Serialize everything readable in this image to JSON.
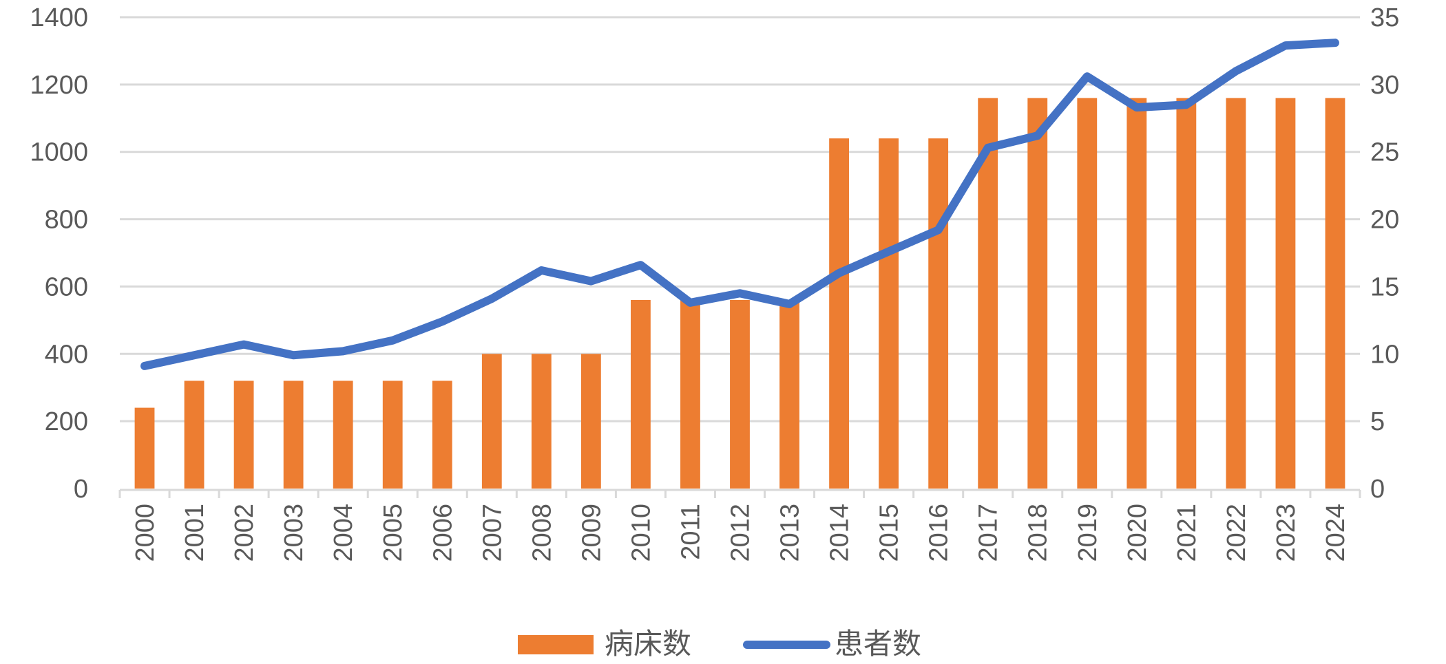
{
  "chart_data": {
    "type": "bar+line",
    "title": "",
    "categories": [
      "2000",
      "2001",
      "2002",
      "2003",
      "2004",
      "2005",
      "2006",
      "2007",
      "2008",
      "2009",
      "2010",
      "2011",
      "2012",
      "2013",
      "2014",
      "2015",
      "2016",
      "2017",
      "2018",
      "2019",
      "2020",
      "2021",
      "2022",
      "2023",
      "2024"
    ],
    "series": [
      {
        "name": "病床数",
        "type": "bar",
        "axis": "left",
        "color": "#ED7D31",
        "values": [
          240,
          320,
          320,
          320,
          320,
          320,
          320,
          400,
          400,
          400,
          560,
          560,
          560,
          560,
          1040,
          1040,
          1040,
          1160,
          1160,
          1160,
          1160,
          1160,
          1160,
          1160,
          1160
        ]
      },
      {
        "name": "患者数",
        "type": "line",
        "axis": "right",
        "color": "#4472C4",
        "values": [
          9.1,
          9.9,
          10.7,
          9.9,
          10.2,
          11.0,
          12.4,
          14.1,
          16.2,
          15.4,
          16.6,
          13.8,
          14.5,
          13.7,
          16.0,
          17.6,
          19.2,
          25.3,
          26.2,
          30.6,
          28.3,
          28.5,
          31.0,
          32.9,
          33.1
        ]
      }
    ],
    "y_left": {
      "range": [
        0,
        1400
      ],
      "ticks": [
        "0",
        "200",
        "400",
        "600",
        "800",
        "1000",
        "1200",
        "1400"
      ]
    },
    "y_right": {
      "range": [
        0,
        35
      ],
      "ticks": [
        "0",
        "5",
        "10",
        "15",
        "20",
        "25",
        "30",
        "35"
      ]
    },
    "grid": true,
    "legend": {
      "position": "bottom",
      "entries": [
        "病床数",
        "患者数"
      ]
    }
  }
}
